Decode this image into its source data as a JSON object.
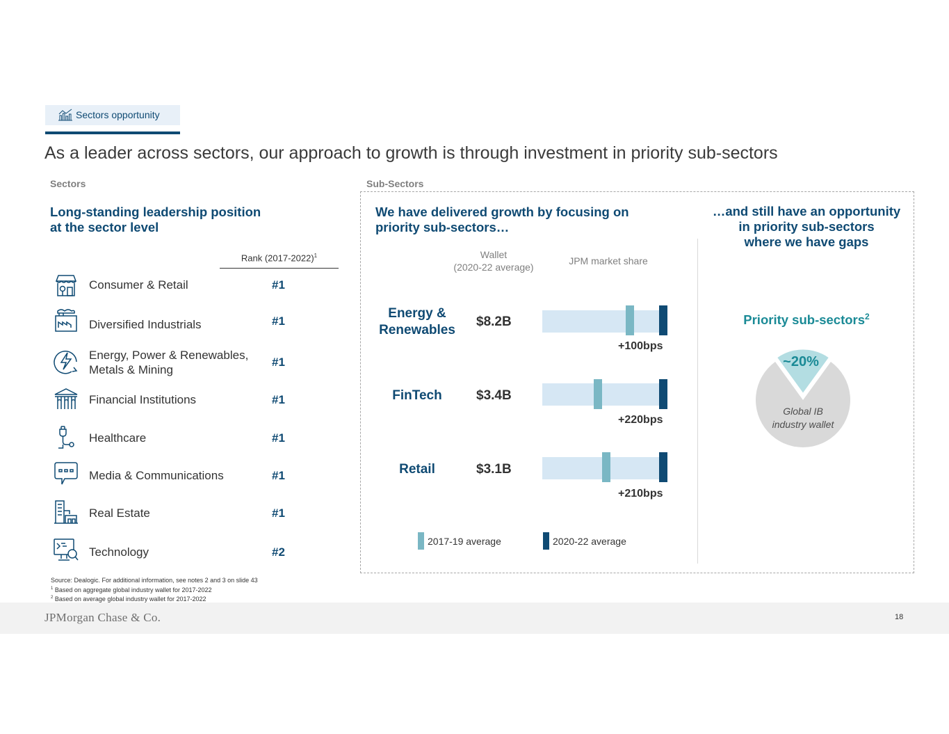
{
  "header": {
    "tag_label": "Sectors opportunity",
    "tag_icon": "bar-chart-icon",
    "title": "As a leader across sectors, our approach to growth is through investment in priority sub-sectors"
  },
  "sectors": {
    "section_label": "Sectors",
    "heading_line1": "Long-standing leadership position",
    "heading_line2": "at the sector level",
    "rank_header": "Rank (2017-2022)",
    "rank_header_note": "1",
    "items": [
      {
        "label": "Consumer & Retail",
        "rank": "#1",
        "icon": "store-icon"
      },
      {
        "label": "Diversified Industrials",
        "rank": "#1",
        "icon": "factory-icon"
      },
      {
        "label_line1": "Energy, Power & Renewables,",
        "label_line2": "Metals & Mining",
        "rank": "#1",
        "icon": "energy-bolt-icon"
      },
      {
        "label": "Financial Institutions",
        "rank": "#1",
        "icon": "bank-icon"
      },
      {
        "label": "Healthcare",
        "rank": "#1",
        "icon": "stethoscope-icon"
      },
      {
        "label": "Media & Communications",
        "rank": "#1",
        "icon": "chat-bubble-icon"
      },
      {
        "label": "Real Estate",
        "rank": "#1",
        "icon": "buildings-icon"
      },
      {
        "label": "Technology",
        "rank": "#2",
        "icon": "monitor-search-icon"
      }
    ]
  },
  "subsectors": {
    "section_label": "Sub-Sectors",
    "heading_line1": "We have delivered growth by focusing on",
    "heading_line2": "priority sub-sectors…",
    "wallet_header_line1": "Wallet",
    "wallet_header_line2": "(2020-22 average)",
    "share_header": "JPM market share",
    "rows": [
      {
        "name_line1": "Energy &",
        "name_line2": "Renewables",
        "wallet": "$8.2B",
        "delta": "+100bps"
      },
      {
        "name": "FinTech",
        "wallet": "$3.4B",
        "delta": "+220bps"
      },
      {
        "name": "Retail",
        "wallet": "$3.1B",
        "delta": "+210bps"
      }
    ],
    "legend": [
      {
        "label": "2017-19 average",
        "color": "#7ab7c4"
      },
      {
        "label": "2020-22 average",
        "color": "#0f4a73"
      }
    ]
  },
  "opportunity": {
    "heading_line1": "…and still have an opportunity",
    "heading_line2": "in priority sub-sectors",
    "heading_line3": "where we have gaps",
    "priority_title": "Priority sub-sectors",
    "priority_note": "2",
    "pie_percent": "~20%",
    "pie_share": 0.2,
    "pie_label_line1": "Global IB",
    "pie_label_line2": "industry wallet"
  },
  "footnotes": {
    "source": "Source: Dealogic. For additional information, see notes 2 and 3 on slide 43",
    "note1_mark": "1",
    "note1": " Based on aggregate global industry wallet for 2017-2022",
    "note2_mark": "2",
    "note2": " Based on average global industry wallet for 2017-2022"
  },
  "footer": {
    "logo": "JPMorgan Chase & Co.",
    "page_number": "18"
  },
  "colors": {
    "navy": "#0f4a73",
    "teal": "#1a8a96",
    "light_teal": "#7ab7c4",
    "bar_background": "#d6e7f4",
    "pie_gray": "#d9d9d9",
    "pie_slice": "#b3dde2"
  }
}
